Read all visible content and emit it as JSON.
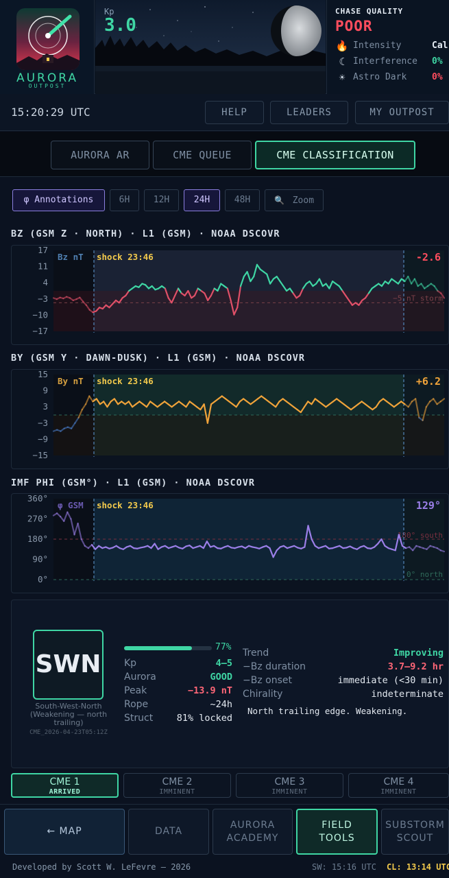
{
  "header": {
    "logo_name": "AURORA",
    "logo_sub": "OUTPOST",
    "kp_label": "Kp",
    "kp_value": "3.0",
    "chase_title": "CHASE QUALITY",
    "chase_value": "POOR",
    "chase_rows": [
      {
        "icon": "flame-icon",
        "glyph": "🔥",
        "label": "Intensity",
        "value": "Cal",
        "color": "#e6edf5"
      },
      {
        "icon": "moon-icon",
        "glyph": "☾",
        "label": "Interference",
        "value": "0%",
        "color": "#3fd6a4"
      },
      {
        "icon": "sun-icon",
        "glyph": "☀",
        "label": "Astro Dark",
        "value": "0%",
        "color": "#ff4d5e"
      }
    ]
  },
  "clock": "15:20:29 UTC",
  "top_buttons": [
    "HELP",
    "LEADERS",
    "MY OUTPOST"
  ],
  "mode_tabs": [
    {
      "label": "AURORA AR",
      "active": false
    },
    {
      "label": "CME QUEUE",
      "active": false
    },
    {
      "label": "CME CLASSIFICATION",
      "active": true
    }
  ],
  "range_buttons": [
    {
      "label": "φ Annotations",
      "active": true
    },
    {
      "label": "6H",
      "active": false
    },
    {
      "label": "12H",
      "active": false
    },
    {
      "label": "24H",
      "active": true
    },
    {
      "label": "48H",
      "active": false
    },
    {
      "label": "Zoom",
      "active": false
    }
  ],
  "charts": {
    "bz": {
      "title": "BZ (GSM Z · NORTH) · L1 (GSM) · NOAA DSCOVR",
      "series_label": "Bz nT",
      "shock_label": "shock 23:46",
      "current": "-2.6",
      "ref_label": "−5 nT storm",
      "yticks": [
        "17",
        "11",
        "4",
        "−3",
        "−10",
        "−17"
      ]
    },
    "by": {
      "title": "BY (GSM Y · DAWN-DUSK) · L1 (GSM) · NOAA DSCOVR",
      "series_label": "By nT",
      "shock_label": "shock 23:46",
      "current": "+6.2",
      "yticks": [
        "15",
        "9",
        "3",
        "−3",
        "−9",
        "−15"
      ]
    },
    "phi": {
      "title": "IMF PHI (GSM°) · L1 (GSM) · NOAA DSCOVR",
      "series_label": "φ GSM",
      "shock_label": "shock 23:46",
      "current": "129°",
      "ref_south": "180° south",
      "ref_north": "0° north",
      "yticks": [
        "360°",
        "270°",
        "180°",
        "90°",
        "0°"
      ]
    }
  },
  "chart_data": [
    {
      "type": "line",
      "title": "BZ (GSM Z · NORTH) · L1 (GSM) · NOAA DSCOVR",
      "ylabel": "Bz nT",
      "ylim": [
        -17,
        17
      ],
      "y": [
        -3,
        -3.5,
        -2.8,
        -3.2,
        -2.5,
        -3,
        -4,
        -3.5,
        -2.8,
        -4.5,
        -6,
        -8,
        -9,
        -8.5,
        -7,
        -7.5,
        -6,
        -7,
        -5.5,
        -4,
        -5,
        -3,
        -2,
        0,
        1,
        2,
        1.5,
        3,
        2.5,
        1,
        2,
        0.5,
        1,
        2,
        1,
        -3,
        -5,
        -2,
        1,
        -1,
        -2,
        0,
        -3,
        -2,
        1,
        0,
        -1,
        -4,
        -2,
        1,
        0,
        3,
        2,
        1,
        -4,
        -10,
        -7,
        2,
        6,
        8,
        4,
        6,
        11,
        9,
        8,
        7,
        3,
        5,
        6,
        4,
        2,
        0,
        1,
        -1,
        -3,
        -2,
        1,
        3,
        4,
        2,
        3,
        5,
        2,
        3,
        1,
        4,
        3,
        2,
        0,
        -2,
        -4,
        -6,
        -5,
        -6,
        -4,
        -3,
        -1,
        1,
        2,
        3,
        2,
        4,
        3,
        5,
        4,
        3,
        5,
        4,
        6,
        3,
        5,
        2,
        3,
        1,
        2,
        3,
        2,
        0,
        -1,
        -3
      ],
      "grid": false
    },
    {
      "type": "line",
      "title": "BY (GSM Y · DAWN-DUSK) · L1 (GSM) · NOAA DSCOVR",
      "ylabel": "By nT",
      "ylim": [
        -15,
        15
      ],
      "y": [
        -6,
        -5.5,
        -6,
        -5,
        -4.5,
        -5,
        -3,
        -1,
        2,
        4,
        7,
        5,
        6,
        4,
        5,
        3,
        5,
        6,
        4,
        5,
        4,
        5,
        3,
        4,
        5,
        4,
        3,
        5,
        4,
        3,
        4,
        5,
        4,
        3,
        4,
        5,
        4,
        3,
        5,
        4,
        3,
        2,
        4,
        -3,
        4,
        5,
        6,
        7,
        6,
        5,
        4,
        3,
        5,
        6,
        5,
        4,
        5,
        6,
        7,
        6,
        5,
        4,
        3,
        5,
        6,
        5,
        4,
        3,
        2,
        1,
        3,
        5,
        4,
        6,
        5,
        4,
        3,
        4,
        5,
        6,
        5,
        4,
        3,
        2,
        3,
        4,
        5,
        4,
        3,
        2,
        3,
        5,
        6,
        5,
        4,
        3,
        4,
        5,
        4,
        3,
        5,
        6,
        -1,
        -2,
        3,
        5,
        6,
        4,
        5,
        6
      ],
      "grid": false
    },
    {
      "type": "line",
      "title": "IMF PHI (GSM°) · L1 (GSM) · NOAA DSCOVR",
      "ylabel": "φ GSM",
      "ylim": [
        0,
        360
      ],
      "y": [
        285,
        295,
        280,
        260,
        300,
        270,
        200,
        250,
        180,
        150,
        140,
        155,
        135,
        150,
        140,
        145,
        138,
        142,
        150,
        140,
        135,
        145,
        150,
        140,
        138,
        142,
        145,
        150,
        140,
        160,
        135,
        145,
        150,
        140,
        145,
        150,
        142,
        138,
        148,
        152,
        140,
        145,
        150,
        140,
        170,
        145,
        150,
        140,
        138,
        145,
        150,
        142,
        140,
        145,
        148,
        140,
        150,
        145,
        142,
        138,
        145,
        150,
        140,
        100,
        130,
        145,
        150,
        140,
        145,
        150,
        142,
        138,
        145,
        240,
        180,
        150,
        140,
        145,
        150,
        138,
        140,
        145,
        150,
        140,
        142,
        148,
        140,
        135,
        145,
        150,
        140,
        138,
        145,
        160,
        180,
        150,
        140,
        135,
        130,
        200,
        150,
        140,
        145,
        130,
        150,
        145,
        140,
        135,
        150,
        145,
        140,
        130,
        125
      ],
      "grid": false
    }
  ],
  "classification": {
    "code": "SWN",
    "desc": "South-West-North (Weakening — north trailing)",
    "id": "CME_2026-04-23T05:12Z",
    "confidence": 0.77,
    "confidence_label": "77%",
    "left_rows": [
      {
        "label": "Kp",
        "value": "4–5",
        "color": "#3fd6a4"
      },
      {
        "label": "Aurora",
        "value": "GOOD",
        "color": "#3fd6a4"
      },
      {
        "label": "Peak",
        "value": "−13.9 nT",
        "color": "#ff6677"
      },
      {
        "label": "Rope",
        "value": "~24h",
        "color": "#e3e9f0"
      },
      {
        "label": "Struct",
        "value": "81% locked",
        "color": "#e3e9f0"
      }
    ],
    "right_rows": [
      {
        "label": "Trend",
        "value": "Improving",
        "color": "#3fd6a4"
      },
      {
        "label": "−Bz duration",
        "value": "3.7–9.2 hr",
        "color": "#ff6677"
      },
      {
        "label": "−Bz onset",
        "value": "immediate (<30 min)",
        "color": "#e3e9f0"
      },
      {
        "label": "Chirality",
        "value": "indeterminate",
        "color": "#e3e9f0"
      }
    ],
    "note": "North trailing edge. Weakening."
  },
  "cme_tabs": [
    {
      "name": "CME 1",
      "status": "ARRIVED",
      "active": true
    },
    {
      "name": "CME 2",
      "status": "IMMINENT",
      "active": false
    },
    {
      "name": "CME 3",
      "status": "IMMINENT",
      "active": false
    },
    {
      "name": "CME 4",
      "status": "IMMINENT",
      "active": false
    }
  ],
  "nav": {
    "map": "← MAP",
    "data": "DATA",
    "academy_1": "AURORA",
    "academy_2": "ACADEMY",
    "field_1": "FIELD",
    "field_2": "TOOLS",
    "scout_1": "SUBSTORM",
    "scout_2": "SCOUT"
  },
  "footer": {
    "dev": "Developed by Scott W. LeFevre — 2026",
    "sw": "SW: 15:16 UTC",
    "cl": "CL: 13:14 UTC"
  },
  "colors": {
    "accent": "#3fd6a4",
    "alert": "#ff4d5e",
    "shock": "#f2c94c",
    "bz_pos": "#3fd6a4",
    "bz_neg": "#e05068",
    "by_pos": "#f0a33a",
    "by_neg": "#4a80d0",
    "phi": "#9b7fe8"
  }
}
